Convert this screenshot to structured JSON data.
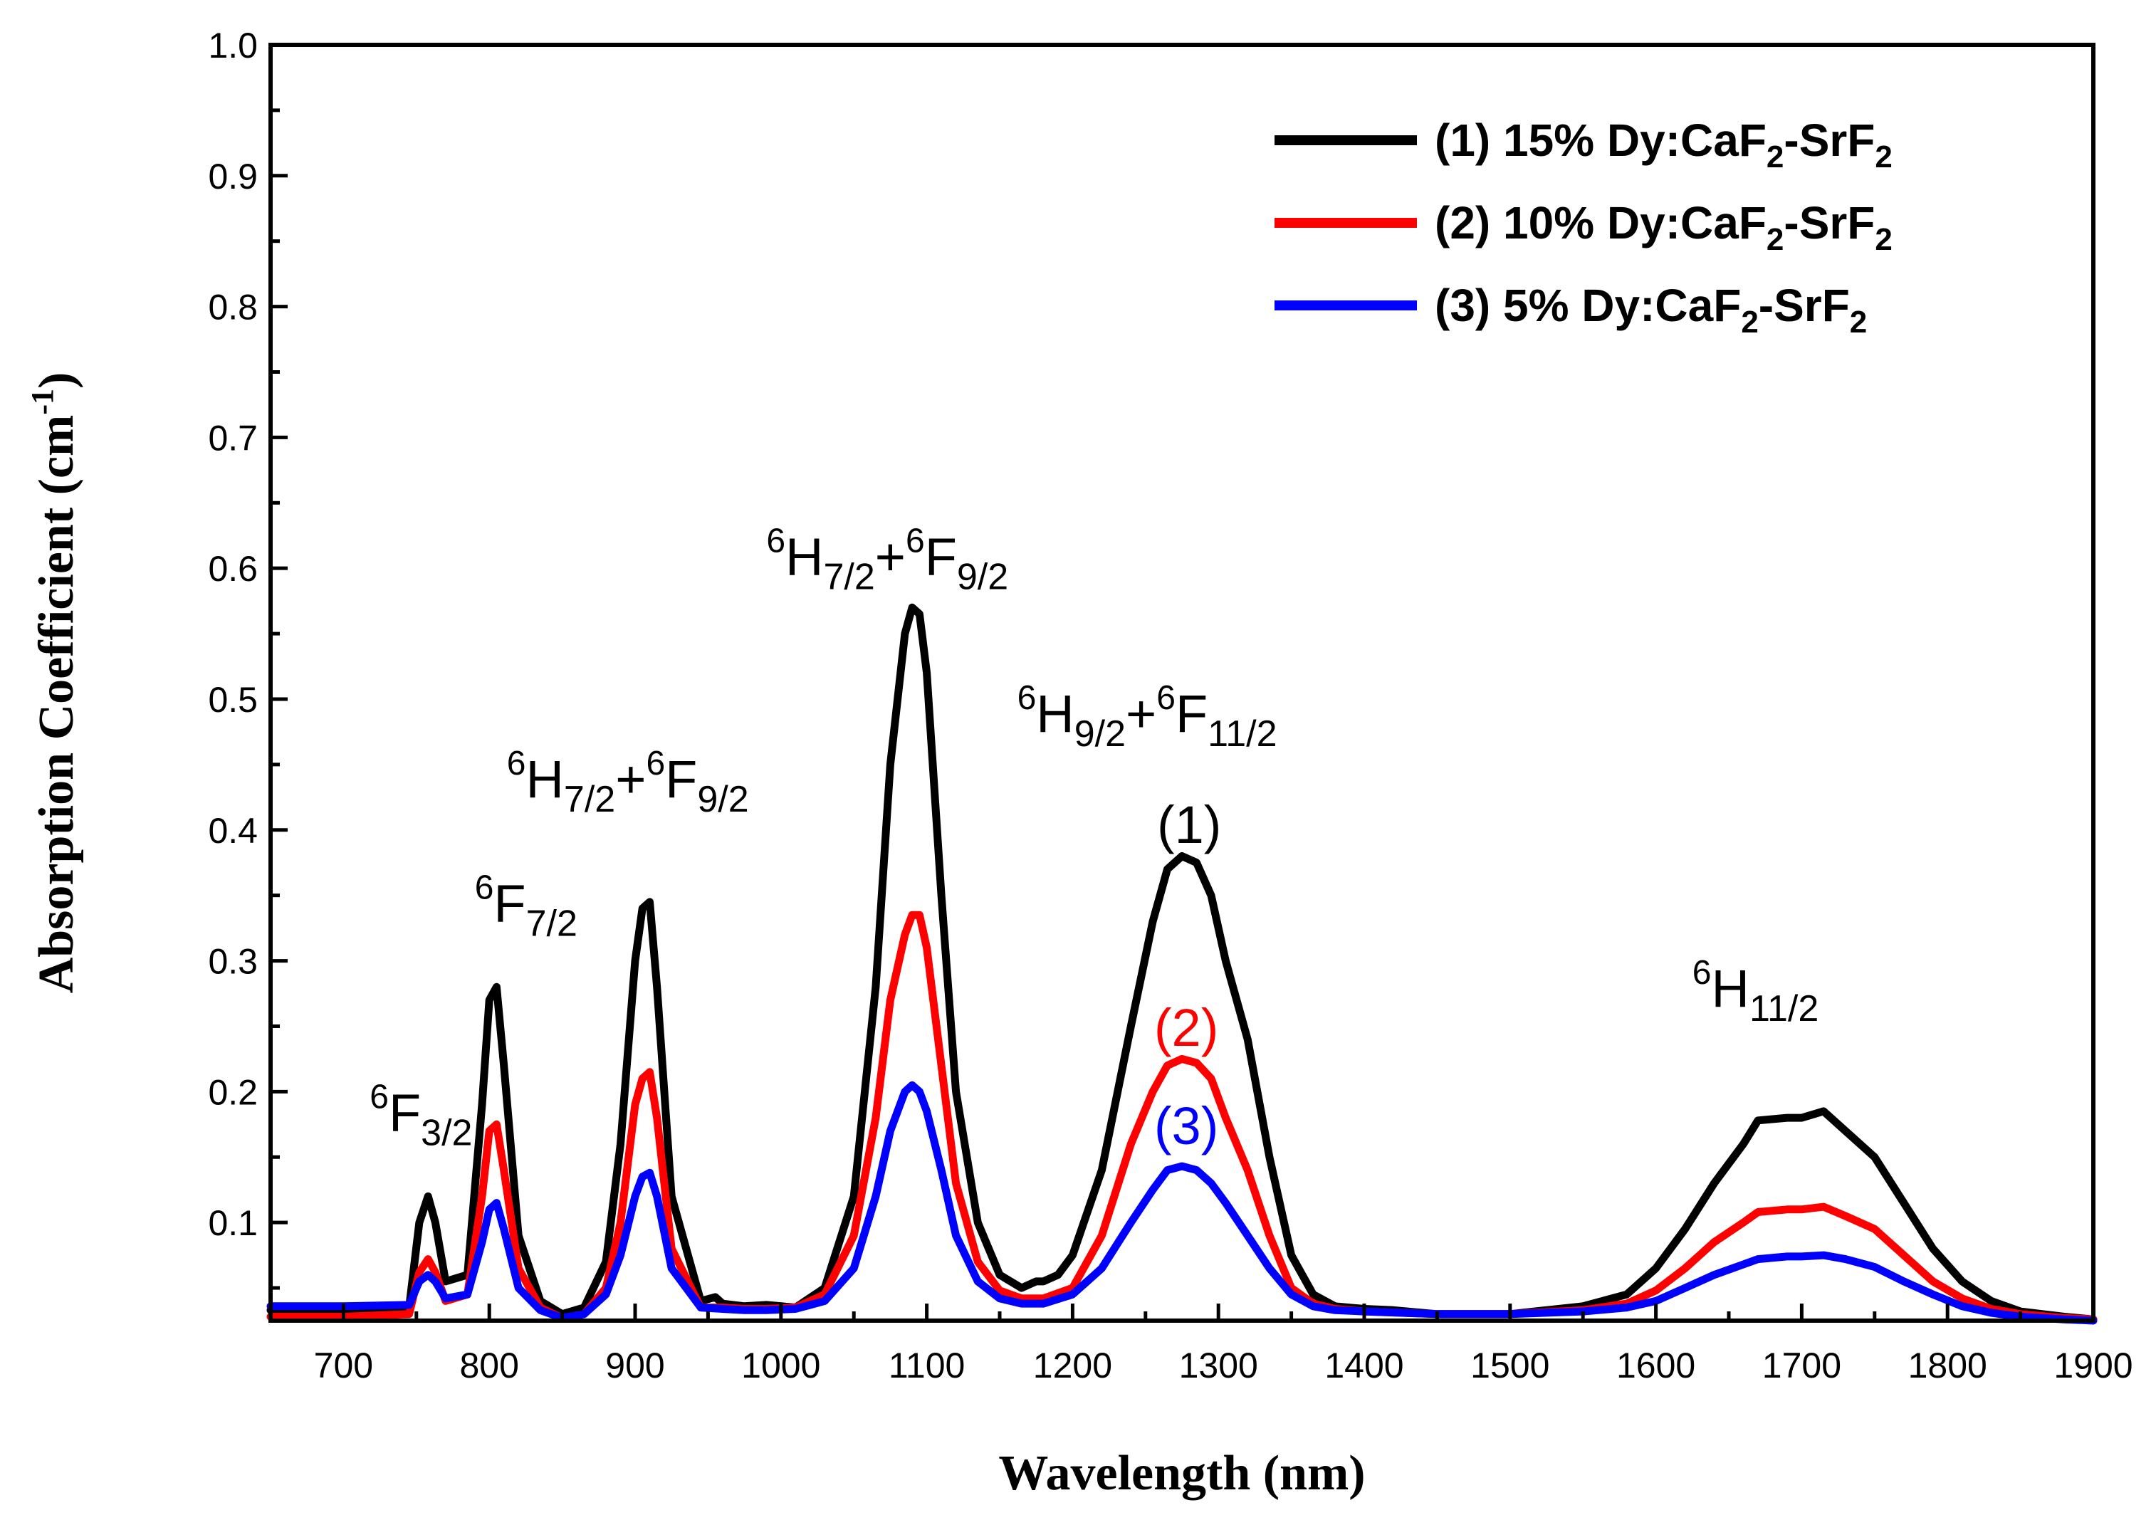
{
  "chart_data": {
    "type": "line",
    "title": "",
    "xlabel": "Wavelength (nm)",
    "ylabel": "Absorption  Coefficient (cm",
    "ylabel_sup": "-1",
    "ylabel_close": ")",
    "xlim": [
      650,
      1900
    ],
    "ylim": [
      0.025,
      1.0
    ],
    "x_ticks": [
      700,
      800,
      900,
      1000,
      1100,
      1200,
      1300,
      1400,
      1500,
      1600,
      1700,
      1800,
      1900
    ],
    "x_tick_labels": [
      "700",
      "800",
      "900",
      "1000",
      "1100",
      "1200",
      "1300",
      "1400",
      "1500",
      "1600",
      "1700",
      "1800",
      "1900"
    ],
    "y_ticks": [
      0.1,
      0.2,
      0.3,
      0.4,
      0.5,
      0.6,
      0.7,
      0.8,
      0.9,
      1.0
    ],
    "y_tick_labels": [
      "0.1",
      "0.2",
      "0.3",
      "0.4",
      "0.5",
      "0.6",
      "0.7",
      "0.8",
      "0.9",
      "1.0"
    ],
    "grid": false,
    "legend_position": "top-right",
    "series": [
      {
        "name": "(1) 15% Dy:CaF2-SrF2",
        "color": "#000000",
        "legend_prefix": "(1) 15% Dy:CaF",
        "legend_sub1": "2",
        "legend_mid": "-SrF",
        "legend_sub2": "2",
        "x": [
          650,
          700,
          745,
          752,
          758,
          763,
          770,
          785,
          795,
          800,
          805,
          810,
          820,
          835,
          850,
          865,
          880,
          890,
          900,
          905,
          910,
          915,
          925,
          945,
          955,
          960,
          975,
          990,
          1010,
          1030,
          1050,
          1065,
          1075,
          1085,
          1090,
          1095,
          1100,
          1110,
          1120,
          1135,
          1150,
          1165,
          1175,
          1180,
          1190,
          1200,
          1220,
          1240,
          1255,
          1265,
          1275,
          1285,
          1295,
          1305,
          1320,
          1335,
          1350,
          1365,
          1380,
          1400,
          1420,
          1450,
          1500,
          1550,
          1580,
          1600,
          1620,
          1640,
          1660,
          1670,
          1690,
          1700,
          1715,
          1730,
          1750,
          1770,
          1790,
          1810,
          1830,
          1850,
          1880,
          1900
        ],
        "y": [
          0.033,
          0.033,
          0.035,
          0.1,
          0.12,
          0.1,
          0.055,
          0.06,
          0.19,
          0.27,
          0.28,
          0.22,
          0.09,
          0.04,
          0.03,
          0.035,
          0.07,
          0.16,
          0.3,
          0.34,
          0.345,
          0.28,
          0.12,
          0.04,
          0.043,
          0.038,
          0.036,
          0.037,
          0.035,
          0.05,
          0.12,
          0.28,
          0.45,
          0.55,
          0.57,
          0.565,
          0.52,
          0.35,
          0.2,
          0.1,
          0.06,
          0.05,
          0.055,
          0.055,
          0.06,
          0.075,
          0.14,
          0.25,
          0.33,
          0.37,
          0.38,
          0.375,
          0.35,
          0.3,
          0.24,
          0.15,
          0.075,
          0.045,
          0.036,
          0.034,
          0.033,
          0.03,
          0.03,
          0.036,
          0.045,
          0.065,
          0.095,
          0.13,
          0.16,
          0.178,
          0.18,
          0.18,
          0.185,
          0.17,
          0.15,
          0.115,
          0.08,
          0.055,
          0.04,
          0.032,
          0.028,
          0.026
        ]
      },
      {
        "name": "(2) 10% Dy:CaF2-SrF2",
        "color": "#ff0000",
        "legend_prefix": "(2) 10% Dy:CaF",
        "legend_sub1": "2",
        "legend_mid": "-SrF",
        "legend_sub2": "2",
        "x": [
          650,
          700,
          745,
          752,
          758,
          763,
          770,
          785,
          795,
          800,
          805,
          810,
          820,
          835,
          850,
          865,
          880,
          890,
          900,
          905,
          910,
          915,
          925,
          945,
          960,
          975,
          990,
          1010,
          1030,
          1050,
          1065,
          1075,
          1085,
          1090,
          1095,
          1100,
          1110,
          1120,
          1135,
          1150,
          1165,
          1180,
          1200,
          1220,
          1240,
          1255,
          1265,
          1275,
          1285,
          1295,
          1305,
          1320,
          1335,
          1350,
          1365,
          1380,
          1400,
          1450,
          1500,
          1550,
          1580,
          1600,
          1620,
          1640,
          1660,
          1670,
          1690,
          1700,
          1715,
          1730,
          1750,
          1770,
          1790,
          1810,
          1830,
          1850,
          1880,
          1900
        ],
        "y": [
          0.028,
          0.028,
          0.03,
          0.062,
          0.072,
          0.062,
          0.04,
          0.045,
          0.12,
          0.17,
          0.175,
          0.14,
          0.065,
          0.035,
          0.027,
          0.03,
          0.05,
          0.1,
          0.19,
          0.21,
          0.215,
          0.18,
          0.08,
          0.035,
          0.035,
          0.034,
          0.034,
          0.035,
          0.045,
          0.09,
          0.18,
          0.27,
          0.32,
          0.335,
          0.335,
          0.31,
          0.22,
          0.13,
          0.07,
          0.048,
          0.042,
          0.042,
          0.05,
          0.09,
          0.16,
          0.2,
          0.22,
          0.225,
          0.222,
          0.21,
          0.18,
          0.14,
          0.09,
          0.05,
          0.038,
          0.034,
          0.032,
          0.03,
          0.03,
          0.033,
          0.038,
          0.048,
          0.065,
          0.085,
          0.1,
          0.108,
          0.11,
          0.11,
          0.112,
          0.105,
          0.095,
          0.075,
          0.055,
          0.042,
          0.034,
          0.03,
          0.027,
          0.026
        ]
      },
      {
        "name": "(3) 5% Dy:CaF2-SrF2",
        "color": "#0000ff",
        "legend_prefix": "(3) 5% Dy:CaF",
        "legend_sub1": "2",
        "legend_mid": "-SrF",
        "legend_sub2": "2",
        "x": [
          650,
          700,
          745,
          752,
          758,
          763,
          770,
          785,
          795,
          800,
          805,
          810,
          820,
          835,
          850,
          865,
          880,
          890,
          900,
          905,
          910,
          915,
          925,
          945,
          960,
          975,
          990,
          1010,
          1030,
          1050,
          1065,
          1075,
          1085,
          1090,
          1095,
          1100,
          1110,
          1120,
          1135,
          1150,
          1165,
          1180,
          1200,
          1220,
          1240,
          1255,
          1265,
          1275,
          1285,
          1295,
          1305,
          1320,
          1335,
          1350,
          1365,
          1380,
          1400,
          1450,
          1500,
          1550,
          1580,
          1600,
          1620,
          1640,
          1660,
          1670,
          1690,
          1700,
          1715,
          1730,
          1750,
          1770,
          1790,
          1810,
          1830,
          1850,
          1880,
          1900
        ],
        "y": [
          0.036,
          0.036,
          0.037,
          0.055,
          0.06,
          0.055,
          0.042,
          0.045,
          0.085,
          0.11,
          0.115,
          0.095,
          0.05,
          0.033,
          0.027,
          0.03,
          0.045,
          0.075,
          0.12,
          0.135,
          0.138,
          0.12,
          0.065,
          0.035,
          0.034,
          0.033,
          0.033,
          0.034,
          0.04,
          0.065,
          0.12,
          0.17,
          0.2,
          0.205,
          0.2,
          0.185,
          0.14,
          0.09,
          0.055,
          0.042,
          0.038,
          0.038,
          0.045,
          0.065,
          0.1,
          0.125,
          0.14,
          0.143,
          0.14,
          0.13,
          0.115,
          0.09,
          0.065,
          0.045,
          0.036,
          0.033,
          0.032,
          0.03,
          0.03,
          0.032,
          0.035,
          0.04,
          0.05,
          0.06,
          0.068,
          0.072,
          0.074,
          0.074,
          0.075,
          0.072,
          0.066,
          0.055,
          0.045,
          0.036,
          0.031,
          0.028,
          0.026,
          0.025
        ]
      }
    ],
    "annotations": [
      {
        "base": "F",
        "sup": "6",
        "sub": "3/2",
        "x": 718,
        "y": 0.17
      },
      {
        "base": "F",
        "sup": "6",
        "sub": "7/2",
        "x": 790,
        "y": 0.33
      },
      {
        "base": "H",
        "sup": "6",
        "sub": "7/2",
        "plus": "+",
        "base2": "F",
        "sup2": "6",
        "sub2": "9/2",
        "x": 812,
        "y": 0.425
      },
      {
        "base": "H",
        "sup": "6",
        "sub": "7/2",
        "plus": "+",
        "base2": "F",
        "sup2": "6",
        "sub2": "9/2",
        "x": 990,
        "y": 0.595
      },
      {
        "base": "H",
        "sup": "6",
        "sub": "9/2",
        "plus": "+",
        "base2": "F",
        "sup2": "6",
        "sub2": "11/2",
        "x": 1162,
        "y": 0.475
      },
      {
        "base": "H",
        "sup": "6",
        "sub": "11/2",
        "x": 1625,
        "y": 0.265
      }
    ],
    "curve_labels": [
      {
        "text": "(1)",
        "color": "#000000",
        "x": 1280,
        "y": 0.39
      },
      {
        "text": "(2)",
        "color": "#ff0000",
        "x": 1278,
        "y": 0.235
      },
      {
        "text": "(3)",
        "color": "#0000ff",
        "x": 1278,
        "y": 0.16
      }
    ]
  }
}
